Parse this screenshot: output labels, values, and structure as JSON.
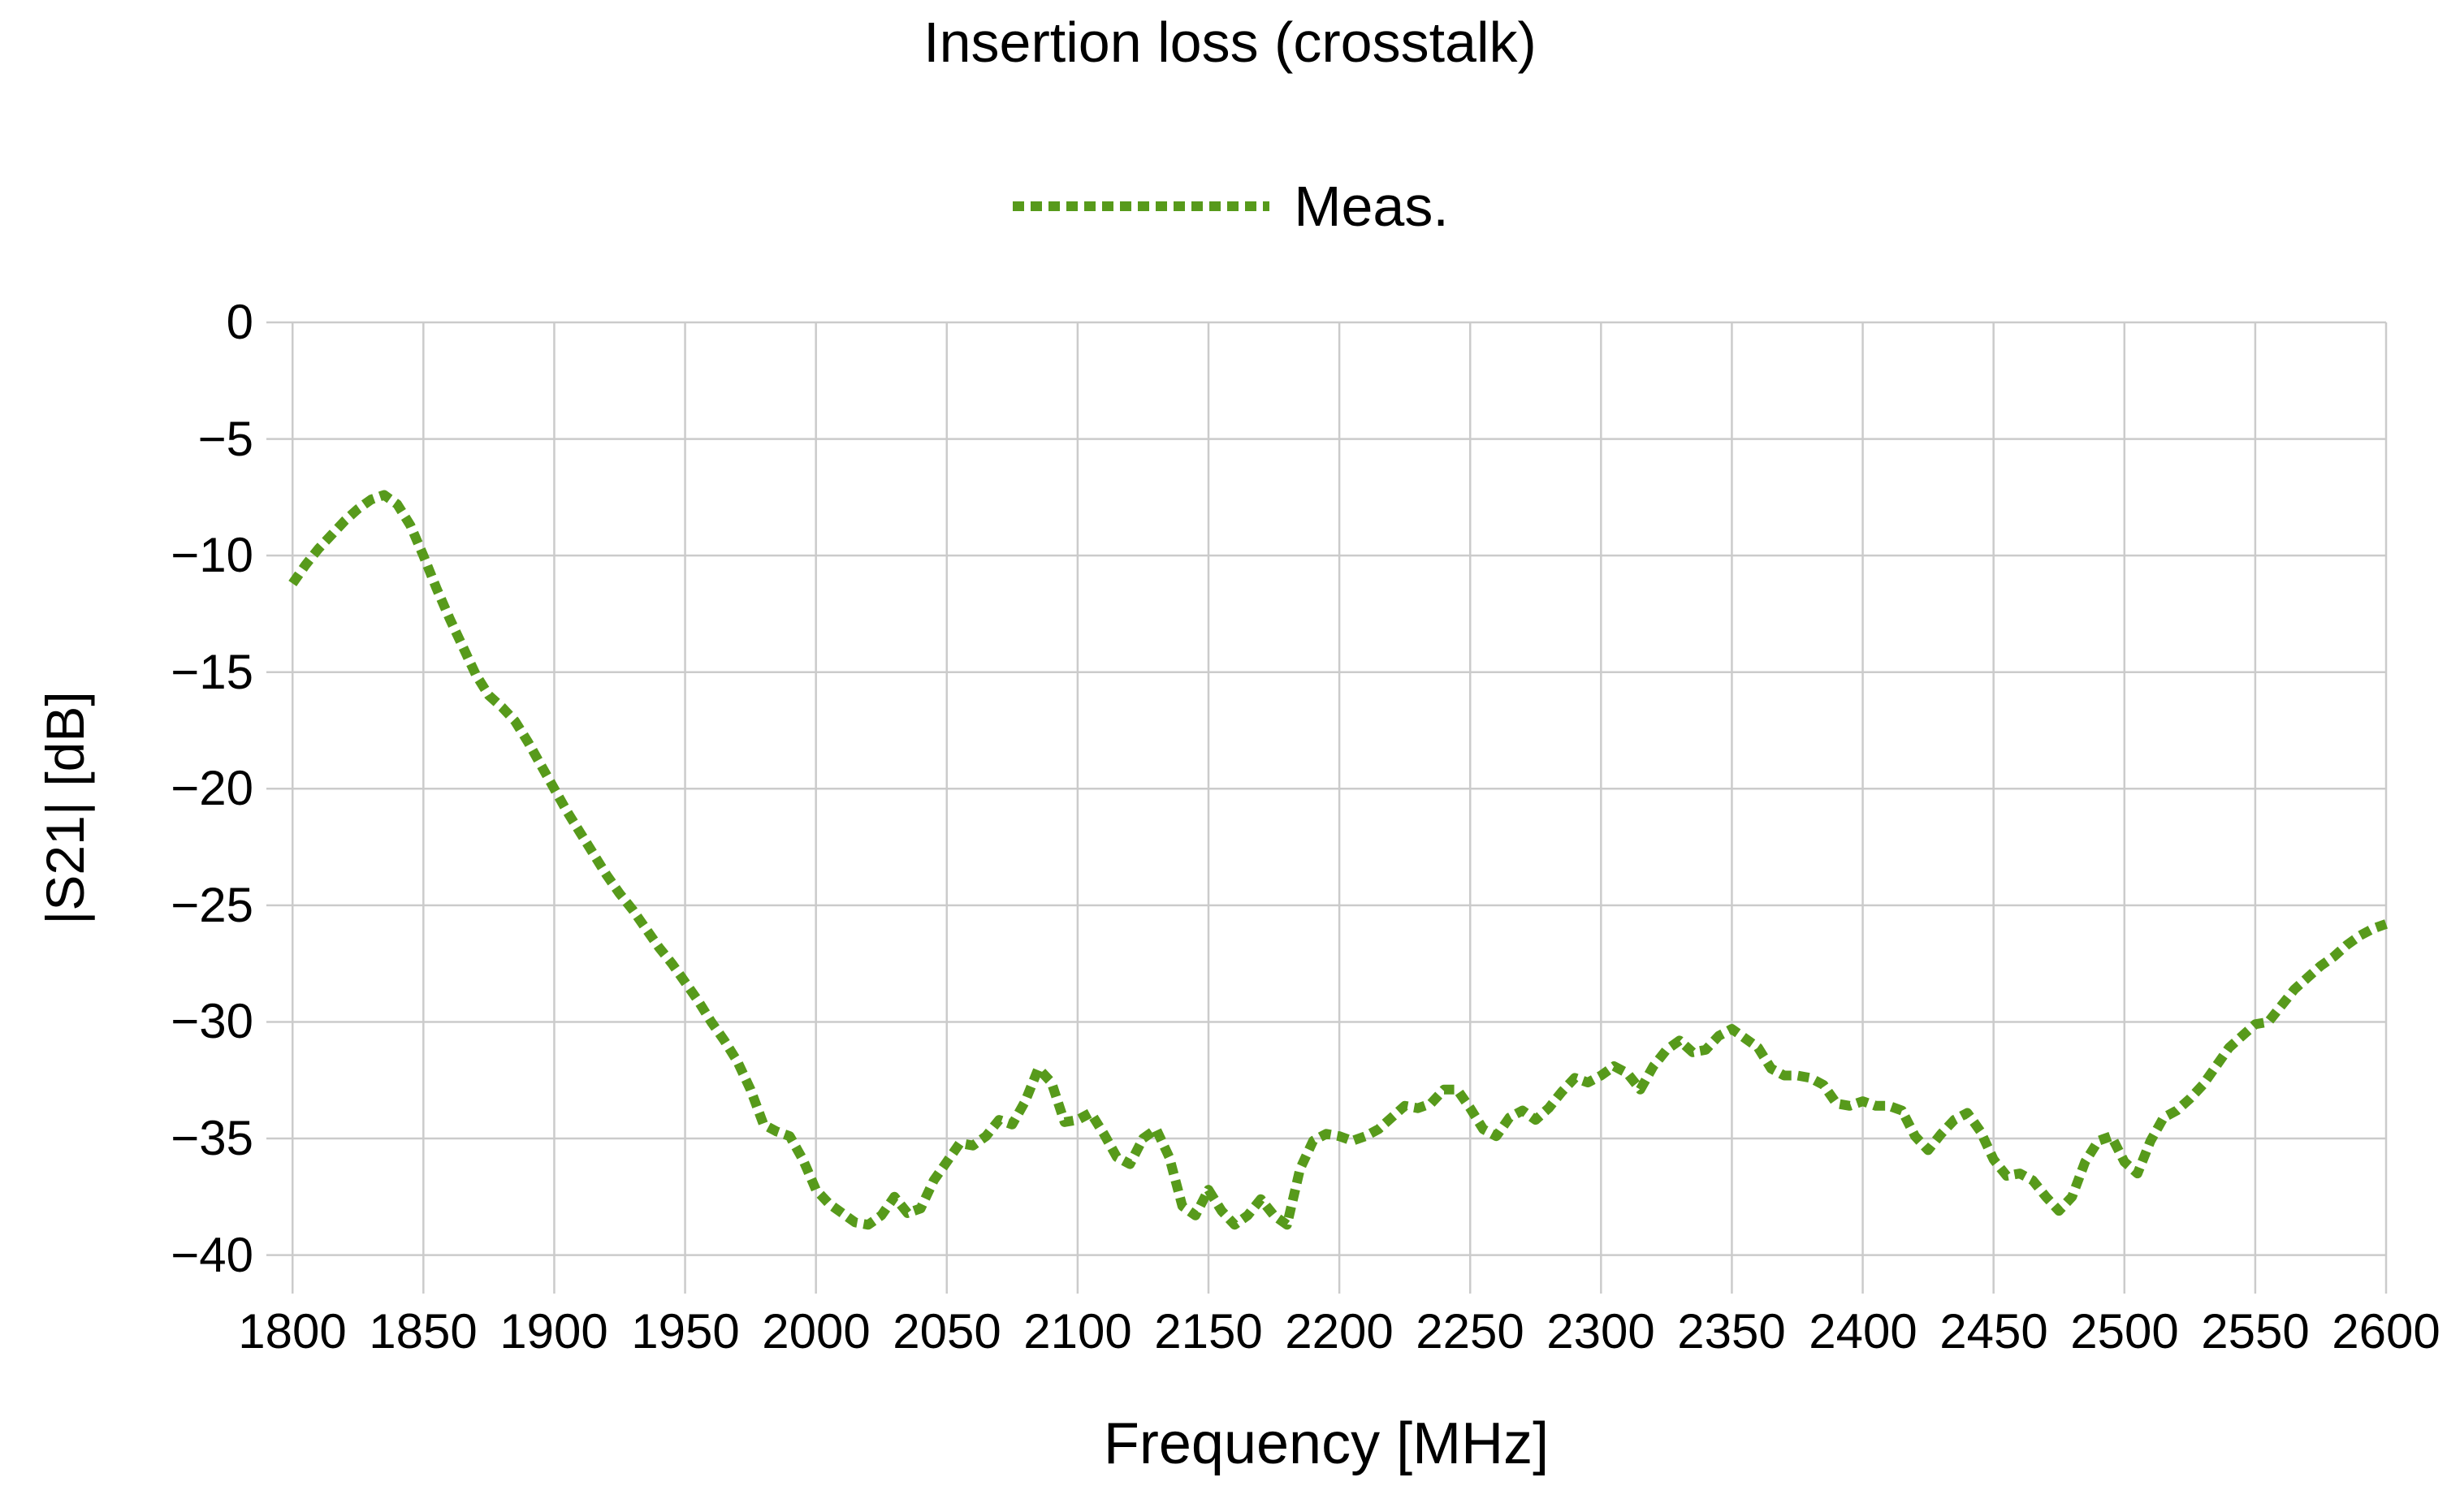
{
  "chart_data": {
    "type": "line",
    "title": "Insertion loss (crosstalk)",
    "xlabel": "Frequency [MHz]",
    "ylabel": "|S21| [dB]",
    "xlim": [
      1790,
      2600
    ],
    "ylim": [
      -41.65,
      0
    ],
    "x_ticks": [
      1800,
      1850,
      1900,
      1950,
      2000,
      2050,
      2100,
      2150,
      2200,
      2250,
      2300,
      2350,
      2400,
      2450,
      2500,
      2550,
      2600
    ],
    "y_ticks": [
      0,
      -5,
      -10,
      -15,
      -20,
      -25,
      -30,
      -35,
      -40
    ],
    "grid": true,
    "axis_spines": false,
    "legend_position": "above-plot-center",
    "colors": {
      "series": "#579a1b",
      "grid": "#cbcbcb",
      "text": "#000000",
      "background": "#ffffff"
    },
    "line_style": {
      "type": "dashed",
      "dash": [
        14,
        8
      ],
      "width": 12
    },
    "series": [
      {
        "name": "Meas.",
        "color": "#579a1b",
        "x": [
          1800,
          1805,
          1810,
          1815,
          1820,
          1825,
          1830,
          1835,
          1840,
          1845,
          1850,
          1855,
          1860,
          1865,
          1870,
          1875,
          1880,
          1885,
          1890,
          1895,
          1900,
          1905,
          1910,
          1915,
          1920,
          1925,
          1930,
          1935,
          1940,
          1945,
          1950,
          1955,
          1960,
          1965,
          1970,
          1975,
          1980,
          1985,
          1990,
          1995,
          2000,
          2005,
          2010,
          2015,
          2020,
          2025,
          2030,
          2035,
          2040,
          2045,
          2050,
          2055,
          2060,
          2065,
          2070,
          2075,
          2080,
          2085,
          2090,
          2095,
          2100,
          2105,
          2110,
          2115,
          2120,
          2125,
          2130,
          2135,
          2140,
          2145,
          2150,
          2155,
          2160,
          2165,
          2170,
          2175,
          2180,
          2185,
          2190,
          2195,
          2200,
          2205,
          2210,
          2215,
          2220,
          2225,
          2230,
          2235,
          2240,
          2245,
          2250,
          2255,
          2260,
          2265,
          2270,
          2275,
          2280,
          2285,
          2290,
          2295,
          2300,
          2305,
          2310,
          2315,
          2320,
          2325,
          2330,
          2335,
          2340,
          2345,
          2350,
          2355,
          2360,
          2365,
          2370,
          2375,
          2380,
          2385,
          2390,
          2395,
          2400,
          2405,
          2410,
          2415,
          2420,
          2425,
          2430,
          2435,
          2440,
          2445,
          2450,
          2455,
          2460,
          2465,
          2470,
          2475,
          2480,
          2485,
          2490,
          2495,
          2500,
          2505,
          2510,
          2515,
          2520,
          2525,
          2530,
          2535,
          2540,
          2545,
          2550,
          2555,
          2560,
          2565,
          2570,
          2575,
          2580,
          2585,
          2590,
          2595,
          2600
        ],
        "y": [
          -11.2,
          -10.4,
          -9.7,
          -9.1,
          -8.5,
          -8,
          -7.6,
          -7.4,
          -7.8,
          -8.7,
          -10,
          -11.4,
          -12.7,
          -13.9,
          -15.1,
          -16,
          -16.5,
          -17.1,
          -18,
          -19,
          -20,
          -21,
          -21.9,
          -22.8,
          -23.7,
          -24.5,
          -25.2,
          -26,
          -26.8,
          -27.5,
          -28.3,
          -29.1,
          -30,
          -30.8,
          -31.7,
          -32.9,
          -34.4,
          -34.7,
          -34.9,
          -35.9,
          -37.2,
          -37.8,
          -38.2,
          -38.6,
          -38.7,
          -38.3,
          -37.5,
          -38.2,
          -38,
          -36.8,
          -36,
          -35.2,
          -35.3,
          -34.9,
          -34.2,
          -34.4,
          -33.4,
          -32,
          -32.6,
          -34.3,
          -34.2,
          -33.9,
          -34.8,
          -35.8,
          -36.1,
          -35,
          -34.6,
          -35.8,
          -37.9,
          -38.3,
          -37.2,
          -38.1,
          -38.7,
          -38.3,
          -37.6,
          -38.3,
          -38.7,
          -36.3,
          -35.1,
          -34.8,
          -34.9,
          -35.1,
          -34.9,
          -34.6,
          -34.1,
          -33.6,
          -33.7,
          -33.5,
          -32.9,
          -32.9,
          -33.7,
          -34.6,
          -34.9,
          -34.1,
          -33.8,
          -34.2,
          -33.7,
          -33,
          -32.4,
          -32.6,
          -32.3,
          -31.9,
          -32.2,
          -32.9,
          -31.9,
          -31.2,
          -30.8,
          -31.3,
          -31.2,
          -30.6,
          -30.3,
          -30.7,
          -31.1,
          -32,
          -32.3,
          -32.3,
          -32.4,
          -32.7,
          -33.5,
          -33.6,
          -33.4,
          -33.6,
          -33.6,
          -33.8,
          -34.9,
          -35.5,
          -34.8,
          -34.2,
          -33.9,
          -34.7,
          -35.9,
          -36.6,
          -36.5,
          -36.8,
          -37.5,
          -38.1,
          -37.5,
          -36,
          -35.1,
          -34.9,
          -36,
          -36.5,
          -35.1,
          -34.1,
          -33.8,
          -33.3,
          -32.7,
          -31.9,
          -31.1,
          -30.6,
          -30.1,
          -30,
          -29.3,
          -28.6,
          -28.1,
          -27.6,
          -27.2,
          -26.7,
          -26.3,
          -26,
          -25.8
        ]
      }
    ]
  }
}
